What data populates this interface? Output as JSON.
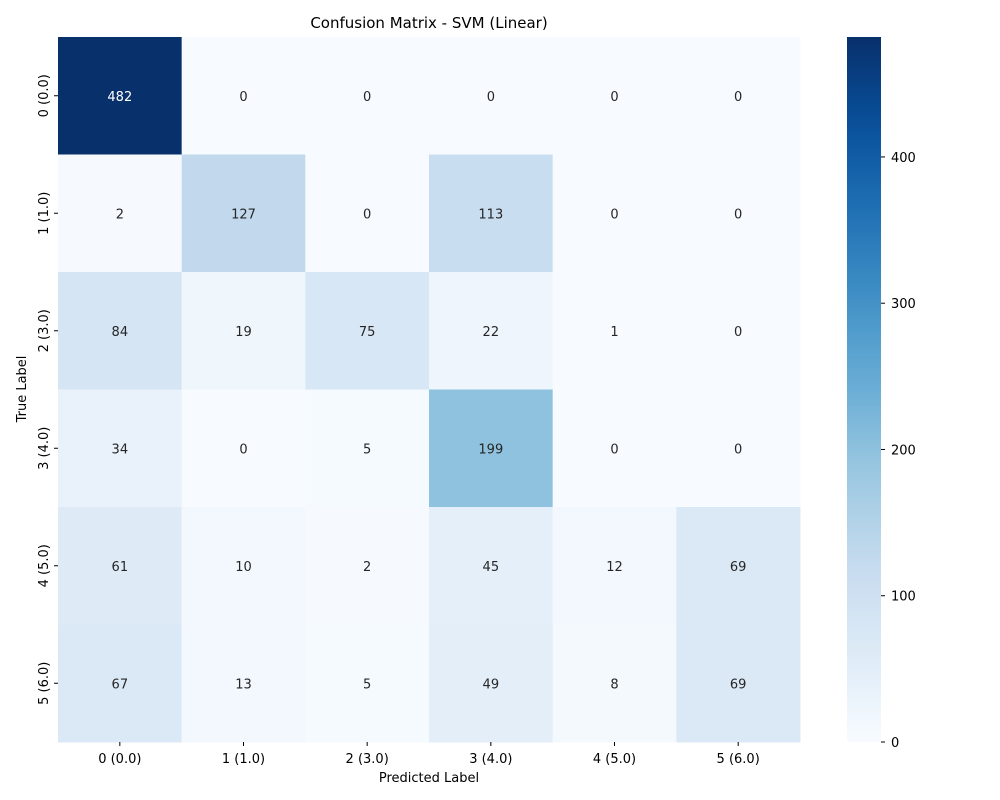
{
  "chart_data": {
    "type": "heatmap",
    "title": "Confusion Matrix - SVM (Linear)",
    "xlabel": "Predicted Label",
    "ylabel": "True Label",
    "x_categories": [
      "0 (0.0)",
      "1 (1.0)",
      "2 (3.0)",
      "3 (4.0)",
      "4 (5.0)",
      "5 (6.0)"
    ],
    "y_categories": [
      "0 (0.0)",
      "1 (1.0)",
      "2 (3.0)",
      "3 (4.0)",
      "4 (5.0)",
      "5 (6.0)"
    ],
    "values": [
      [
        482,
        0,
        0,
        0,
        0,
        0
      ],
      [
        2,
        127,
        0,
        113,
        0,
        0
      ],
      [
        84,
        19,
        75,
        22,
        1,
        0
      ],
      [
        34,
        0,
        5,
        199,
        0,
        0
      ],
      [
        61,
        10,
        2,
        45,
        12,
        69
      ],
      [
        67,
        13,
        5,
        49,
        8,
        69
      ]
    ],
    "colorbar": {
      "min": 0,
      "max": 482,
      "ticks": [
        0,
        100,
        200,
        300,
        400
      ],
      "colormap": "Blues"
    },
    "annotations": true,
    "grid": false
  }
}
